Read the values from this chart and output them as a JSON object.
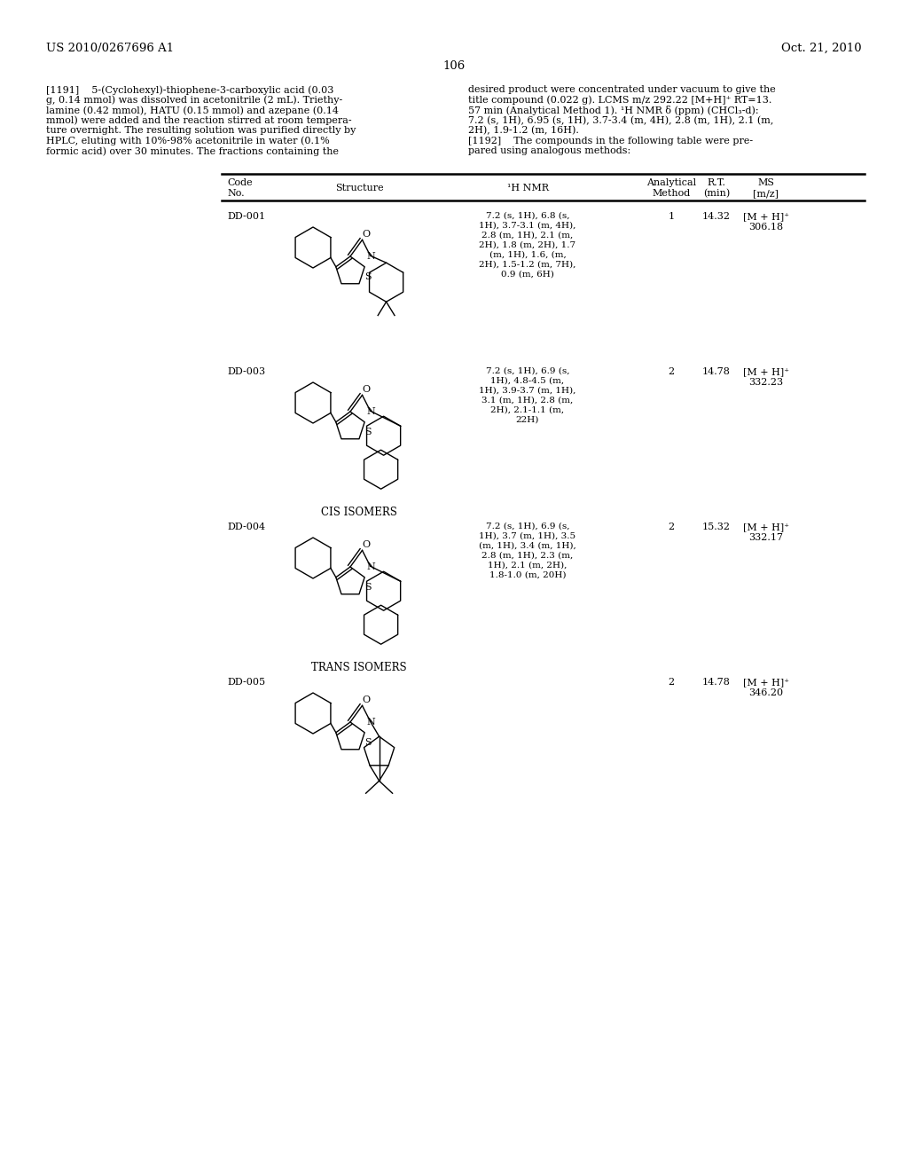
{
  "page_header_left": "US 2010/0267696 A1",
  "page_header_right": "Oct. 21, 2010",
  "page_number": "106",
  "left_col_lines": [
    "[1191]    5-(Cyclohexyl)-thiophene-3-carboxylic acid (0.03",
    "g, 0.14 mmol) was dissolved in acetonitrile (2 mL). Triethy-",
    "lamine (0.42 mmol), HATU (0.15 mmol) and azepane (0.14",
    "mmol) were added and the reaction stirred at room tempera-",
    "ture overnight. The resulting solution was purified directly by",
    "HPLC, eluting with 10%-98% acetonitrile in water (0.1%",
    "formic acid) over 30 minutes. The fractions containing the"
  ],
  "right_col_lines": [
    "desired product were concentrated under vacuum to give the",
    "title compound (0.022 g). LCMS m/z 292.22 [M+H]⁺ RT=13.",
    "57 min (Analytical Method 1). ¹H NMR δ (ppm) (CHCl₃-d):",
    "7.2 (s, 1H), 6.95 (s, 1H), 3.7-3.4 (m, 4H), 2.8 (m, 1H), 2.1 (m,",
    "2H), 1.9-1.2 (m, 16H).",
    "[1192]    The compounds in the following table were pre-",
    "pared using analogous methods:"
  ],
  "compounds": [
    {
      "code": "DD-001",
      "nmr": "7.2 (s, 1H), 6.8 (s,\n1H), 3.7-3.1 (m, 4H),\n2.8 (m, 1H), 2.1 (m,\n2H), 1.8 (m, 2H), 1.7\n(m, 1H), 1.6, (m,\n2H), 1.5-1.2 (m, 7H),\n0.9 (m, 6H)",
      "method": "1",
      "rt": "14.32",
      "ms": "[M + H]⁺\n306.18",
      "sublabel": ""
    },
    {
      "code": "DD-003",
      "nmr": "7.2 (s, 1H), 6.9 (s,\n1H), 4.8-4.5 (m,\n1H), 3.9-3.7 (m, 1H),\n3.1 (m, 1H), 2.8 (m,\n2H), 2.1-1.1 (m,\n22H)",
      "method": "2",
      "rt": "14.78",
      "ms": "[M + H]⁺\n332.23",
      "sublabel": "CIS ISOMERS"
    },
    {
      "code": "DD-004",
      "nmr": "7.2 (s, 1H), 6.9 (s,\n1H), 3.7 (m, 1H), 3.5\n(m, 1H), 3.4 (m, 1H),\n2.8 (m, 1H), 2.3 (m,\n1H), 2.1 (m, 2H),\n1.8-1.0 (m, 20H)",
      "method": "2",
      "rt": "15.32",
      "ms": "[M + H]⁺\n332.17",
      "sublabel": "TRANS ISOMERS"
    },
    {
      "code": "DD-005",
      "nmr": "",
      "method": "2",
      "rt": "14.78",
      "ms": "[M + H]⁺\n346.20",
      "sublabel": ""
    }
  ]
}
